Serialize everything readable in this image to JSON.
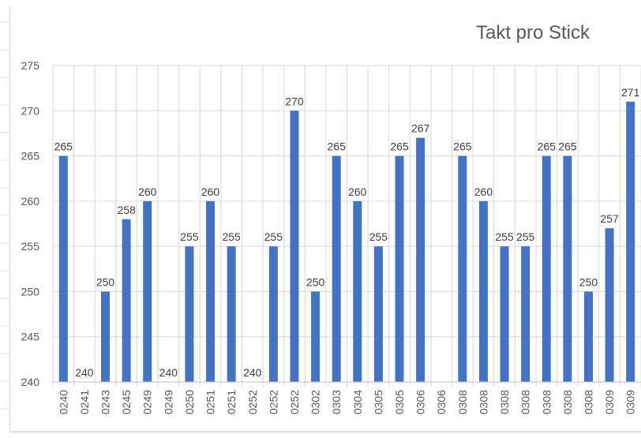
{
  "chart_data": {
    "type": "bar",
    "title": "Takt pro Stick",
    "xlabel": "",
    "ylabel": "",
    "ylim": [
      240,
      275
    ],
    "yticks": [
      240,
      245,
      250,
      255,
      260,
      265,
      270,
      275
    ],
    "grid": true,
    "legend": "none",
    "bar_color": "#4472c4",
    "categories": [
      "0240",
      "0241",
      "0243",
      "0245",
      "0249",
      "0249",
      "0250",
      "0251",
      "0251",
      "0252",
      "0252",
      "0252",
      "0302",
      "0303",
      "0304",
      "0305",
      "0305",
      "0306",
      "0306",
      "0308",
      "0308",
      "0308",
      "0308",
      "0308",
      "0308",
      "0308",
      "0309",
      "0309"
    ],
    "values": [
      265,
      240,
      250,
      258,
      260,
      240,
      255,
      260,
      255,
      240,
      255,
      270,
      250,
      265,
      260,
      255,
      265,
      267,
      null,
      265,
      260,
      255,
      255,
      265,
      265,
      250,
      257,
      271
    ],
    "data_labels": [
      "265",
      "240",
      "250",
      "258",
      "260",
      "240",
      "255",
      "260",
      "255",
      "240",
      "255",
      "270",
      "250",
      "265",
      "260",
      "255",
      "265",
      "267",
      "",
      "265",
      "260",
      "255",
      "255",
      "265",
      "265",
      "250",
      "257",
      "271"
    ]
  }
}
